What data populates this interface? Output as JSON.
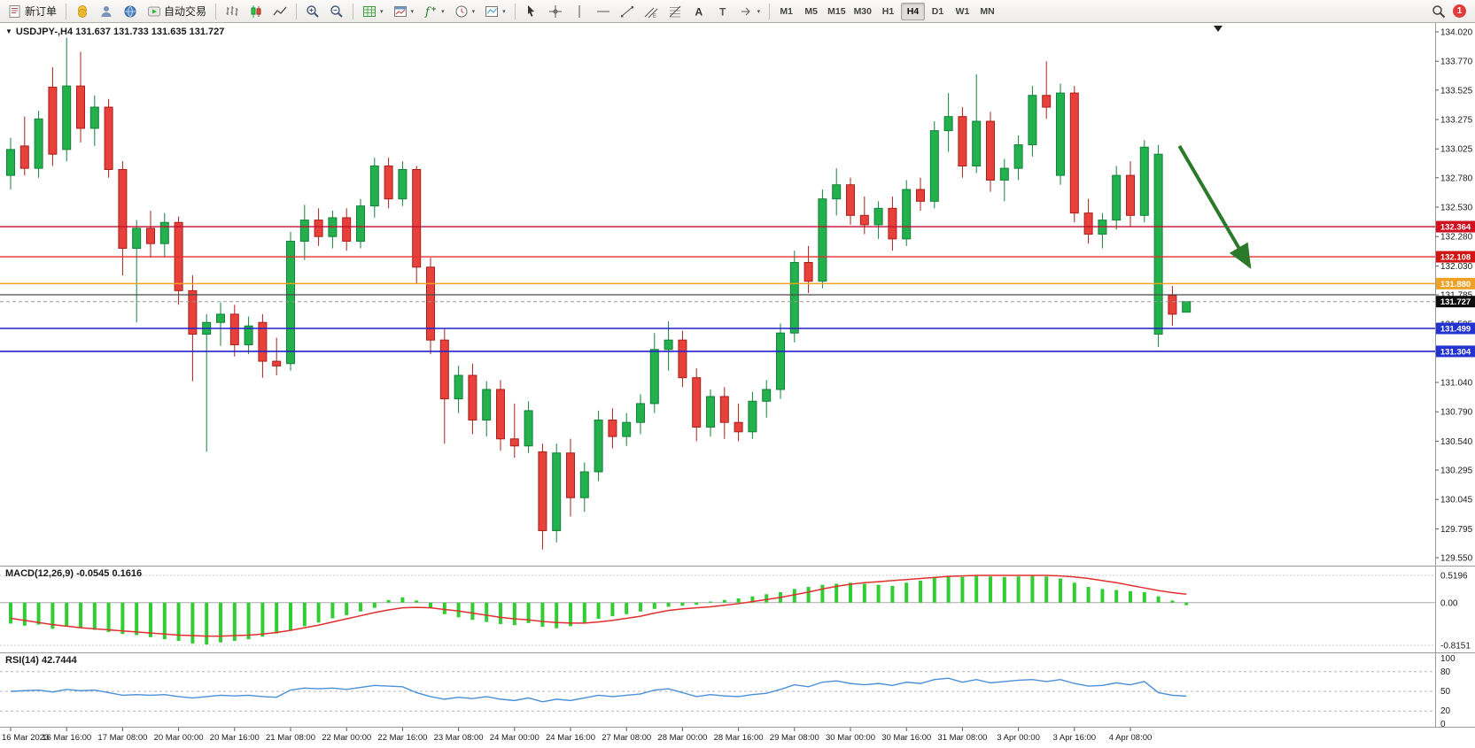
{
  "toolbar": {
    "new_order_label": "新订单",
    "auto_trading_label": "自动交易",
    "timeframes": [
      "M1",
      "M5",
      "M15",
      "M30",
      "H1",
      "H4",
      "D1",
      "W1",
      "MN"
    ],
    "active_timeframe": "H4",
    "notification_count": "1"
  },
  "chart_data": {
    "type": "candlestick",
    "symbol": "USDJPY-",
    "timeframe": "H4",
    "info_line": "USDJPY-,H4  131.637 131.733 131.635 131.727",
    "ohlc": {
      "open": "131.637",
      "high": "131.733",
      "low": "131.635",
      "close": "131.727"
    },
    "up_color": "#22b14c",
    "down_color": "#e8403a",
    "up_stroke": "#13813a",
    "down_stroke": "#a8201a",
    "price_axis": [
      "134.020",
      "133.770",
      "133.525",
      "133.275",
      "133.025",
      "132.780",
      "132.530",
      "132.280",
      "132.030",
      "131.785",
      "131.535",
      "131.290",
      "131.040",
      "130.790",
      "130.540",
      "130.295",
      "130.045",
      "129.795",
      "129.550"
    ],
    "time_axis": [
      {
        "bar": 0,
        "label": "16 Mar 2023"
      },
      {
        "bar": 4,
        "label": "16 Mar 16:00"
      },
      {
        "bar": 8,
        "label": "17 Mar 08:00"
      },
      {
        "bar": 12,
        "label": "20 Mar 00:00"
      },
      {
        "bar": 16,
        "label": "20 Mar 16:00"
      },
      {
        "bar": 20,
        "label": "21 Mar 08:00"
      },
      {
        "bar": 24,
        "label": "22 Mar 00:00"
      },
      {
        "bar": 28,
        "label": "22 Mar 16:00"
      },
      {
        "bar": 32,
        "label": "23 Mar 08:00"
      },
      {
        "bar": 36,
        "label": "24 Mar 00:00"
      },
      {
        "bar": 40,
        "label": "24 Mar 16:00"
      },
      {
        "bar": 44,
        "label": "27 Mar 08:00"
      },
      {
        "bar": 48,
        "label": "28 Mar 00:00"
      },
      {
        "bar": 52,
        "label": "28 Mar 16:00"
      },
      {
        "bar": 56,
        "label": "29 Mar 08:00"
      },
      {
        "bar": 60,
        "label": "30 Mar 00:00"
      },
      {
        "bar": 64,
        "label": "30 Mar 16:00"
      },
      {
        "bar": 68,
        "label": "31 Mar 08:00"
      },
      {
        "bar": 72,
        "label": "3 Apr 00:00"
      },
      {
        "bar": 76,
        "label": "3 Apr 16:00"
      },
      {
        "bar": 80,
        "label": "4 Apr 08:00"
      }
    ],
    "candles": [
      [
        132.8,
        133.12,
        132.68,
        133.02
      ],
      [
        133.05,
        133.3,
        132.8,
        132.86
      ],
      [
        132.86,
        133.35,
        132.78,
        133.28
      ],
      [
        133.55,
        133.72,
        132.88,
        132.98
      ],
      [
        133.02,
        133.97,
        132.92,
        133.56
      ],
      [
        133.56,
        133.85,
        133.08,
        133.2
      ],
      [
        133.2,
        133.48,
        133.05,
        133.38
      ],
      [
        133.38,
        133.45,
        132.78,
        132.85
      ],
      [
        132.85,
        132.92,
        131.95,
        132.18
      ],
      [
        132.18,
        132.42,
        131.55,
        132.35
      ],
      [
        132.35,
        132.5,
        132.1,
        132.22
      ],
      [
        132.22,
        132.48,
        132.1,
        132.4
      ],
      [
        132.4,
        132.45,
        131.7,
        131.82
      ],
      [
        131.82,
        131.95,
        131.05,
        131.45
      ],
      [
        131.45,
        131.62,
        130.45,
        131.55
      ],
      [
        131.55,
        131.72,
        131.35,
        131.62
      ],
      [
        131.62,
        131.7,
        131.26,
        131.36
      ],
      [
        131.36,
        131.6,
        131.28,
        131.52
      ],
      [
        131.55,
        131.62,
        131.08,
        131.22
      ],
      [
        131.22,
        131.42,
        131.1,
        131.18
      ],
      [
        131.2,
        132.32,
        131.14,
        132.24
      ],
      [
        132.24,
        132.55,
        132.08,
        132.42
      ],
      [
        132.42,
        132.52,
        132.2,
        132.28
      ],
      [
        132.28,
        132.5,
        132.18,
        132.44
      ],
      [
        132.44,
        132.52,
        132.16,
        132.24
      ],
      [
        132.24,
        132.6,
        132.18,
        132.54
      ],
      [
        132.54,
        132.95,
        132.44,
        132.88
      ],
      [
        132.88,
        132.95,
        132.52,
        132.6
      ],
      [
        132.6,
        132.92,
        132.54,
        132.85
      ],
      [
        132.85,
        132.88,
        131.88,
        132.02
      ],
      [
        132.02,
        132.1,
        131.28,
        131.4
      ],
      [
        131.4,
        131.5,
        130.52,
        130.9
      ],
      [
        130.9,
        131.18,
        130.78,
        131.1
      ],
      [
        131.1,
        131.2,
        130.6,
        130.72
      ],
      [
        130.72,
        131.05,
        130.58,
        130.98
      ],
      [
        130.98,
        131.06,
        130.46,
        130.56
      ],
      [
        130.56,
        130.86,
        130.4,
        130.5
      ],
      [
        130.5,
        130.88,
        130.44,
        130.8
      ],
      [
        130.45,
        130.52,
        129.62,
        129.78
      ],
      [
        129.78,
        130.52,
        129.68,
        130.44
      ],
      [
        130.44,
        130.56,
        129.9,
        130.06
      ],
      [
        130.06,
        130.36,
        129.94,
        130.28
      ],
      [
        130.28,
        130.8,
        130.2,
        130.72
      ],
      [
        130.72,
        130.82,
        130.48,
        130.58
      ],
      [
        130.58,
        130.78,
        130.5,
        130.7
      ],
      [
        130.7,
        130.94,
        130.6,
        130.86
      ],
      [
        130.86,
        131.46,
        130.78,
        131.32
      ],
      [
        131.32,
        131.56,
        131.14,
        131.4
      ],
      [
        131.4,
        131.48,
        131.0,
        131.08
      ],
      [
        131.08,
        131.16,
        130.54,
        130.66
      ],
      [
        130.66,
        130.98,
        130.58,
        130.92
      ],
      [
        130.92,
        131.0,
        130.56,
        130.7
      ],
      [
        130.7,
        130.86,
        130.54,
        130.62
      ],
      [
        130.62,
        130.96,
        130.56,
        130.88
      ],
      [
        130.88,
        131.06,
        130.74,
        130.98
      ],
      [
        130.98,
        131.54,
        130.9,
        131.46
      ],
      [
        131.46,
        132.16,
        131.38,
        132.06
      ],
      [
        132.06,
        132.2,
        131.8,
        131.9
      ],
      [
        131.9,
        132.68,
        131.84,
        132.6
      ],
      [
        132.6,
        132.86,
        132.46,
        132.72
      ],
      [
        132.72,
        132.78,
        132.38,
        132.46
      ],
      [
        132.46,
        132.62,
        132.3,
        132.38
      ],
      [
        132.38,
        132.58,
        132.26,
        132.52
      ],
      [
        132.52,
        132.62,
        132.16,
        132.26
      ],
      [
        132.26,
        132.76,
        132.2,
        132.68
      ],
      [
        132.68,
        132.78,
        132.5,
        132.58
      ],
      [
        132.58,
        133.26,
        132.52,
        133.18
      ],
      [
        133.18,
        133.5,
        133.0,
        133.3
      ],
      [
        133.3,
        133.38,
        132.78,
        132.88
      ],
      [
        132.88,
        133.66,
        132.82,
        133.26
      ],
      [
        133.26,
        133.34,
        132.66,
        132.76
      ],
      [
        132.76,
        132.94,
        132.58,
        132.86
      ],
      [
        132.86,
        133.14,
        132.76,
        133.06
      ],
      [
        133.06,
        133.56,
        132.96,
        133.48
      ],
      [
        133.48,
        133.77,
        133.28,
        133.38
      ],
      [
        132.8,
        133.58,
        132.72,
        133.5
      ],
      [
        133.5,
        133.56,
        132.4,
        132.48
      ],
      [
        132.48,
        132.6,
        132.22,
        132.3
      ],
      [
        132.3,
        132.48,
        132.18,
        132.42
      ],
      [
        132.42,
        132.88,
        132.34,
        132.8
      ],
      [
        132.8,
        132.92,
        132.36,
        132.46
      ],
      [
        132.46,
        133.1,
        132.4,
        133.04
      ],
      [
        131.45,
        133.06,
        131.34,
        132.98
      ],
      [
        131.78,
        131.86,
        131.52,
        131.62
      ],
      [
        131.637,
        131.733,
        131.635,
        131.727
      ]
    ],
    "hlines": [
      {
        "price": 132.364,
        "label": "132.364",
        "color": "#c01030",
        "tag_bg": "#cf1020",
        "width": 1.3
      },
      {
        "price": 132.108,
        "label": "132.108",
        "color": "#e03030",
        "tag_bg": "#d21414",
        "width": 1.3
      },
      {
        "price": 131.88,
        "label": "131.880",
        "color": "#efa126",
        "tag_bg": "#efa126",
        "width": 1.6
      },
      {
        "price": 131.785,
        "label": null,
        "color": "#4a4a4a",
        "tag_bg": null,
        "width": 1.2
      },
      {
        "price": 131.499,
        "label": "131.499",
        "color": "#2222cc",
        "tag_bg": "#2233d0",
        "width": 1.6
      },
      {
        "price": 131.304,
        "label": "131.304",
        "color": "#2222cc",
        "tag_bg": "#2233d0",
        "width": 1.6
      }
    ],
    "current_price": {
      "value": 131.727,
      "label": "131.727",
      "tag_bg": "#0d0d0d"
    },
    "trend_arrow": {
      "from_bar": 83.5,
      "to_bar": 88.5,
      "from_price": 133.05,
      "to_price": 132.03,
      "color": "#2a7a2a"
    },
    "macd": {
      "label": "MACD(12,26,9)",
      "value_main": "-0.0545",
      "value_signal": "0.1616",
      "hist_color": "#32CD32",
      "signal_color": "#e03030",
      "axis": [
        {
          "v": 0.5196,
          "label": "0.5196"
        },
        {
          "v": 0,
          "label": "0.00"
        },
        {
          "v": -0.8151,
          "label": "-0.8151"
        }
      ],
      "hist": [
        -0.4,
        -0.44,
        -0.42,
        -0.5,
        -0.46,
        -0.48,
        -0.52,
        -0.56,
        -0.6,
        -0.62,
        -0.66,
        -0.7,
        -0.73,
        -0.78,
        -0.8,
        -0.76,
        -0.73,
        -0.7,
        -0.65,
        -0.59,
        -0.52,
        -0.45,
        -0.38,
        -0.3,
        -0.24,
        -0.17,
        -0.1,
        0.05,
        0.1,
        0.04,
        -0.1,
        -0.22,
        -0.28,
        -0.33,
        -0.37,
        -0.41,
        -0.43,
        -0.39,
        -0.46,
        -0.49,
        -0.45,
        -0.38,
        -0.31,
        -0.26,
        -0.22,
        -0.17,
        -0.12,
        -0.08,
        -0.06,
        -0.04,
        0.02,
        0.05,
        0.08,
        0.12,
        0.16,
        0.2,
        0.26,
        0.3,
        0.34,
        0.36,
        0.38,
        0.36,
        0.34,
        0.32,
        0.38,
        0.42,
        0.47,
        0.5,
        0.49,
        0.51,
        0.5,
        0.49,
        0.5,
        0.51,
        0.5,
        0.46,
        0.38,
        0.3,
        0.26,
        0.24,
        0.22,
        0.2,
        0.12,
        0.04,
        -0.05
      ],
      "signal": [
        -0.3,
        -0.34,
        -0.38,
        -0.42,
        -0.45,
        -0.48,
        -0.5,
        -0.52,
        -0.54,
        -0.56,
        -0.58,
        -0.6,
        -0.62,
        -0.63,
        -0.64,
        -0.64,
        -0.63,
        -0.62,
        -0.6,
        -0.57,
        -0.53,
        -0.48,
        -0.43,
        -0.37,
        -0.31,
        -0.25,
        -0.19,
        -0.14,
        -0.1,
        -0.09,
        -0.1,
        -0.13,
        -0.16,
        -0.2,
        -0.24,
        -0.28,
        -0.31,
        -0.33,
        -0.36,
        -0.38,
        -0.39,
        -0.39,
        -0.37,
        -0.34,
        -0.3,
        -0.26,
        -0.2,
        -0.15,
        -0.12,
        -0.1,
        -0.08,
        -0.05,
        -0.02,
        0.02,
        0.06,
        0.1,
        0.15,
        0.2,
        0.26,
        0.31,
        0.35,
        0.38,
        0.4,
        0.42,
        0.44,
        0.46,
        0.48,
        0.5,
        0.51,
        0.52,
        0.52,
        0.52,
        0.52,
        0.52,
        0.52,
        0.51,
        0.49,
        0.46,
        0.42,
        0.38,
        0.33,
        0.28,
        0.23,
        0.19,
        0.16
      ]
    },
    "rsi": {
      "label": "RSI(14)",
      "value": "42.7444",
      "line_color": "#4a90d9",
      "levels": [
        80,
        50,
        20
      ],
      "axis": [
        {
          "v": 100,
          "label": "100"
        },
        {
          "v": 80,
          "label": "80"
        },
        {
          "v": 50,
          "label": "50"
        },
        {
          "v": 20,
          "label": "20"
        },
        {
          "v": 0,
          "label": "0"
        }
      ],
      "values": [
        50,
        51,
        52,
        49,
        53,
        51,
        52,
        48,
        44,
        45,
        44,
        45,
        42,
        40,
        42,
        44,
        43,
        44,
        42,
        41,
        52,
        55,
        54,
        55,
        53,
        56,
        59,
        58,
        57,
        48,
        42,
        38,
        41,
        39,
        42,
        38,
        36,
        40,
        34,
        38,
        36,
        40,
        44,
        42,
        44,
        46,
        52,
        54,
        48,
        42,
        45,
        43,
        42,
        45,
        47,
        53,
        60,
        57,
        64,
        66,
        62,
        60,
        62,
        59,
        64,
        62,
        68,
        70,
        64,
        68,
        63,
        65,
        67,
        68,
        65,
        68,
        62,
        58,
        59,
        63,
        60,
        65,
        48,
        44,
        42.74
      ]
    }
  }
}
